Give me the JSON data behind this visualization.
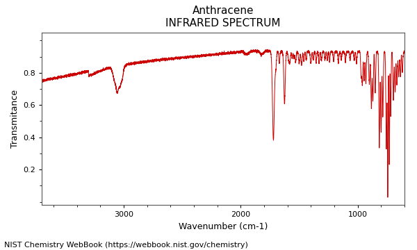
{
  "title_line1": "Anthracene",
  "title_line2": "INFRARED SPECTRUM",
  "xlabel": "Wavenumber (cm-1)",
  "ylabel": "Transmitance",
  "xlim": [
    3700,
    600
  ],
  "ylim": [
    -0.02,
    1.05
  ],
  "yticks": [
    0.2,
    0.4,
    0.6,
    0.8
  ],
  "xticks": [
    3000,
    2000,
    1000
  ],
  "line_color": "#cc0000",
  "background_color": "#ffffff",
  "plot_bg_color": "#ffffff",
  "footer_text": "NIST Chemistry WebBook (https://webbook.nist.gov/chemistry)",
  "footer_fontsize": 8,
  "title_fontsize": 11,
  "label_fontsize": 9
}
